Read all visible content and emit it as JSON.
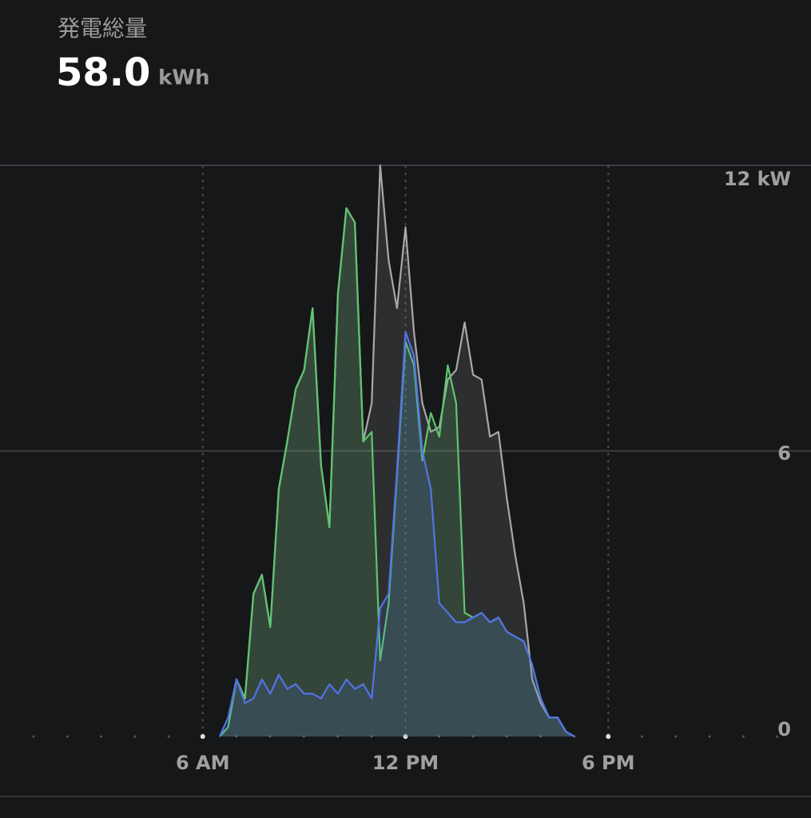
{
  "chart_data": {
    "type": "area",
    "title": "発電総量",
    "total": "58.0",
    "total_unit": "kWh",
    "x": [
      6.5,
      6.75,
      7,
      7.25,
      7.5,
      7.75,
      8,
      8.25,
      8.5,
      8.75,
      9,
      9.25,
      9.5,
      9.75,
      10,
      10.25,
      10.5,
      10.75,
      11,
      11.25,
      11.5,
      11.75,
      12,
      12.25,
      12.5,
      12.75,
      13,
      13.25,
      13.5,
      13.75,
      14,
      14.25,
      14.5,
      14.75,
      15,
      15.25,
      15.5,
      15.75,
      16,
      16.25,
      16.5,
      16.75,
      17
    ],
    "series": [
      {
        "color": "#a8a8a8",
        "values": [
          0,
          0.2,
          1.2,
          0.8,
          3.0,
          3.4,
          2.3,
          5.2,
          6.2,
          7.3,
          7.7,
          9.0,
          5.7,
          4.4,
          9.3,
          11.1,
          10.8,
          6.2,
          7.0,
          12.0,
          10.0,
          9.0,
          10.7,
          8.5,
          7.0,
          6.4,
          6.5,
          7.5,
          7.7,
          8.7,
          7.6,
          7.5,
          6.3,
          6.4,
          5.0,
          3.8,
          2.8,
          1.2,
          0.7,
          0.4,
          0.4,
          0.1,
          0
        ]
      },
      {
        "color": "#5fc56f",
        "values": [
          0,
          0.2,
          1.2,
          0.8,
          3.0,
          3.4,
          2.3,
          5.2,
          6.2,
          7.3,
          7.7,
          9.0,
          5.7,
          4.4,
          9.3,
          11.1,
          10.8,
          6.2,
          6.4,
          1.6,
          2.8,
          5.5,
          8.3,
          7.8,
          5.8,
          6.8,
          6.3,
          7.8,
          7.0,
          2.6,
          2.5,
          2.6,
          2.4,
          2.5,
          2.2,
          2.1,
          2.0,
          1.5,
          0.8,
          0.4,
          0.4,
          0.1,
          0
        ]
      },
      {
        "color": "#5273e6",
        "values": [
          0,
          0.4,
          1.2,
          0.7,
          0.8,
          1.2,
          0.9,
          1.3,
          1.0,
          1.1,
          0.9,
          0.9,
          0.8,
          1.1,
          0.9,
          1.2,
          1.0,
          1.1,
          0.8,
          2.7,
          3.0,
          5.6,
          8.5,
          8.0,
          6.0,
          5.2,
          2.8,
          2.6,
          2.4,
          2.4,
          2.5,
          2.6,
          2.4,
          2.5,
          2.2,
          2.1,
          2.0,
          1.5,
          0.8,
          0.4,
          0.4,
          0.1,
          0
        ]
      }
    ],
    "xlim": [
      0,
      24
    ],
    "xticks": [
      {
        "value": 6,
        "label": "6 AM"
      },
      {
        "value": 12,
        "label": "12 PM"
      },
      {
        "value": 18,
        "label": "6 PM"
      }
    ],
    "ylim": [
      0,
      12
    ],
    "yticks": [
      0,
      6,
      {
        "value": 12,
        "label": "12 kW"
      }
    ],
    "grid": true
  }
}
